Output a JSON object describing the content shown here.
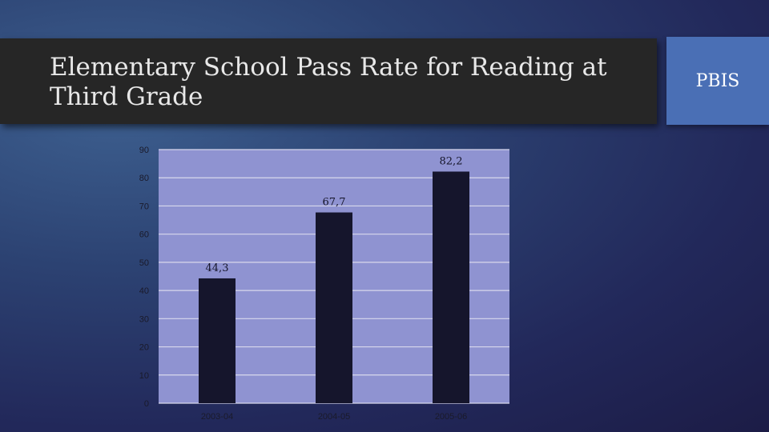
{
  "slide": {
    "title": "Elementary School Pass Rate for Reading at Third Grade",
    "tag": "PBIS"
  },
  "colors": {
    "plot_bg": "#8f93d1",
    "bar": "#15152c",
    "banner": "#262626",
    "tag_box": "#4a6fb5"
  },
  "chart_data": {
    "type": "bar",
    "categories": [
      "2003-04",
      "2004-05",
      "2005-06"
    ],
    "values": [
      44.3,
      67.7,
      82.2
    ],
    "value_labels": [
      "44,3",
      "67,7",
      "82,2"
    ],
    "ylim": [
      0,
      90
    ],
    "yticks": [
      0,
      10,
      20,
      30,
      40,
      50,
      60,
      70,
      80,
      90
    ],
    "grid": true,
    "legend": "none",
    "title": "",
    "xlabel": "",
    "ylabel": ""
  }
}
